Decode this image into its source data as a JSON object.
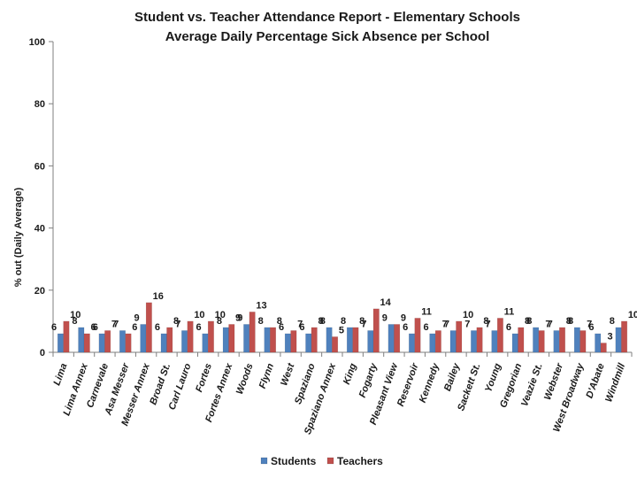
{
  "chart_data": {
    "type": "bar",
    "title": "Student vs. Teacher Attendance Report - Elementary Schools",
    "subtitle": "Average Daily Percentage Sick Absence per School",
    "ylabel": "% out (Daily Average)",
    "xlabel": "",
    "ylim": [
      0,
      100
    ],
    "yticks": [
      "0",
      "20",
      "40",
      "60",
      "80",
      "100"
    ],
    "grid": false,
    "legend_position": "bottom",
    "categories": [
      "Lima",
      "Lima Annex",
      "Carnevale",
      "Asa Messer",
      "Messer Annex",
      "Broad St.",
      "Carl Lauro",
      "Fortes",
      "Fortes Annex",
      "Woods",
      "Flynn",
      "West",
      "Spaziano",
      "Spaziano Annex",
      "King",
      "Fogarty",
      "Pleasant View",
      "Reservoir",
      "Kennedy",
      "Bailey",
      "Sackett St.",
      "Young",
      "Gregorian",
      "Veazie St.",
      "Webster",
      "West Broadway",
      "D'Abate",
      "Windmill"
    ],
    "series": [
      {
        "name": "Students",
        "color": "#4f81bd",
        "values": [
          6,
          8,
          6,
          7,
          9,
          6,
          7,
          6,
          8,
          9,
          8,
          6,
          6,
          8,
          8,
          7,
          9,
          6,
          6,
          7,
          7,
          7,
          6,
          8,
          7,
          8,
          6,
          8
        ],
        "labels": [
          "6",
          "8",
          "6",
          "7",
          "9",
          "6",
          "7",
          "6",
          "8",
          "9",
          "8",
          "6",
          "6",
          "8",
          "8",
          "7",
          "9",
          "6",
          "6",
          "7",
          "7",
          "7",
          "6",
          "8",
          "7",
          "8",
          "6",
          "8"
        ]
      },
      {
        "name": "Teachers",
        "color": "#c0504d",
        "values": [
          10,
          6,
          7,
          6,
          16,
          8,
          10,
          10,
          9,
          13,
          8,
          7,
          8,
          5,
          8,
          14,
          9,
          11,
          7,
          10,
          8,
          11,
          8,
          7,
          8,
          7,
          3,
          10
        ],
        "labels": [
          "10",
          "6",
          "7",
          "6",
          "16",
          "8",
          "10",
          "10",
          "9",
          "13",
          "8",
          "7",
          "8",
          "5",
          "8",
          "14",
          "9",
          "11",
          "7",
          "10",
          "8",
          "11",
          "8",
          "7",
          "8",
          "7",
          "3",
          "10"
        ]
      }
    ]
  }
}
